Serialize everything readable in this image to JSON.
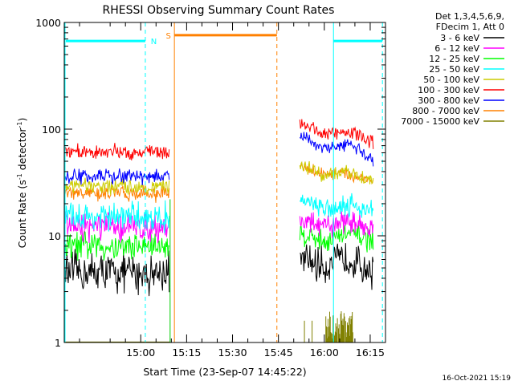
{
  "chart_data": {
    "type": "line",
    "title": "RHESSI Observing Summary Count Rates",
    "xlabel": "Start Time (23-Sep-07 14:45:22)",
    "ylabel_main": "Count Rate (s",
    "ylabel_sup1": "-1",
    "ylabel_mid": " detector",
    "ylabel_sup2": "-1",
    "ylabel_end": ")",
    "y_scale": "log",
    "ylim": [
      1,
      1000
    ],
    "xlim_minutes": [
      -10,
      95
    ],
    "x_ticks": [
      {
        "label": "15:00",
        "minute": 15
      },
      {
        "label": "15:15",
        "minute": 30
      },
      {
        "label": "15:30",
        "minute": 45
      },
      {
        "label": "15:45",
        "minute": 60
      },
      {
        "label": "16:00",
        "minute": 75
      },
      {
        "label": "16:15",
        "minute": 90
      }
    ],
    "y_ticks": [
      {
        "label": "1",
        "value": 1
      },
      {
        "label": "10",
        "value": 10
      },
      {
        "label": "100",
        "value": 100
      },
      {
        "label": "1000",
        "value": 1000
      }
    ],
    "legend_header": [
      "Det 1,3,4,5,6,9,",
      "FDecim 1, Att 0"
    ],
    "legend_position": "right",
    "series": [
      {
        "name": "3 - 6 keV",
        "color": "#000000",
        "pre": 4.5,
        "post": [
          6.0,
          5.2,
          6.2,
          4.5
        ]
      },
      {
        "name": "6 - 12 keV",
        "color": "#ff00ff",
        "pre": 12.0,
        "post": [
          14.0,
          12.0,
          14.0,
          11.5
        ]
      },
      {
        "name": "12 - 25 keV",
        "color": "#00ff00",
        "pre": 8.0,
        "post": [
          10.5,
          9.0,
          10.5,
          9.0
        ]
      },
      {
        "name": "25 - 50 keV",
        "color": "#00ffff",
        "pre": 15.0,
        "post": [
          22.0,
          18.0,
          20.0,
          17.0
        ]
      },
      {
        "name": "50 - 100 keV",
        "color": "#cccc00",
        "pre": 29.0,
        "post": [
          48.0,
          36.0,
          40.0,
          32.0
        ]
      },
      {
        "name": "100 - 300 keV",
        "color": "#ff0000",
        "pre": 61.0,
        "post": [
          115.0,
          90.0,
          95.0,
          75.0
        ]
      },
      {
        "name": "300 - 800 keV",
        "color": "#0000ff",
        "pre": 36.0,
        "post": [
          85.0,
          65.0,
          72.0,
          52.0
        ]
      },
      {
        "name": "800 - 7000 keV",
        "color": "#ff8000",
        "pre": 25.0,
        "post": [
          44.0,
          38.0,
          38.0,
          33.0
        ]
      },
      {
        "name": "7000 - 15000 keV",
        "color": "#808000",
        "pre": null,
        "post": null
      }
    ],
    "pre_interval_minutes": [
      -10,
      24.5
    ],
    "post_interval_minutes": [
      67,
      91
    ],
    "annotations": [
      {
        "label": "N",
        "color": "#00ffff"
      },
      {
        "label": "S",
        "color": "#ff8000"
      }
    ],
    "timestamp": "16-Oct-2021 15:19"
  }
}
